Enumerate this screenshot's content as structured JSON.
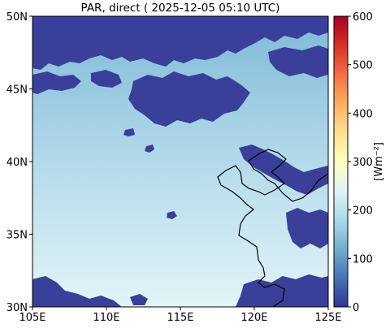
{
  "title": "PAR, direct ( 2025-12-05 05:10 UTC)",
  "map": {
    "lon_range": [
      105,
      125
    ],
    "lat_range": [
      30,
      50
    ],
    "x_ticks": [
      {
        "value": 105,
        "label": "105E"
      },
      {
        "value": 110,
        "label": "110E"
      },
      {
        "value": 115,
        "label": "115E"
      },
      {
        "value": 120,
        "label": "120E"
      },
      {
        "value": 125,
        "label": "125E"
      }
    ],
    "y_ticks": [
      {
        "value": 30,
        "label": "30N"
      },
      {
        "value": 35,
        "label": "35N"
      },
      {
        "value": 40,
        "label": "40N"
      },
      {
        "value": 45,
        "label": "45N"
      },
      {
        "value": 50,
        "label": "50N"
      }
    ]
  },
  "colorbar": {
    "label": "[Wm⁻²]",
    "range": [
      0,
      600
    ],
    "ticks": [
      {
        "value": 0,
        "label": "0"
      },
      {
        "value": 100,
        "label": "100"
      },
      {
        "value": 200,
        "label": "200"
      },
      {
        "value": 300,
        "label": "300"
      },
      {
        "value": 400,
        "label": "400"
      },
      {
        "value": 500,
        "label": "500"
      },
      {
        "value": 600,
        "label": "600"
      }
    ],
    "colormap": "RdYlBu_r",
    "stops": [
      "#313695",
      "#4575b4",
      "#74add1",
      "#abd9e9",
      "#e0f3f8",
      "#ffffbf",
      "#fee090",
      "#fdae61",
      "#f46d43",
      "#d73027",
      "#a50026"
    ]
  },
  "colors": {
    "cloud": "#3a3f9a",
    "clear_sky_light": "#dceff5",
    "clear_sky_dark": "#9ccde2",
    "coastline": "#000000"
  }
}
